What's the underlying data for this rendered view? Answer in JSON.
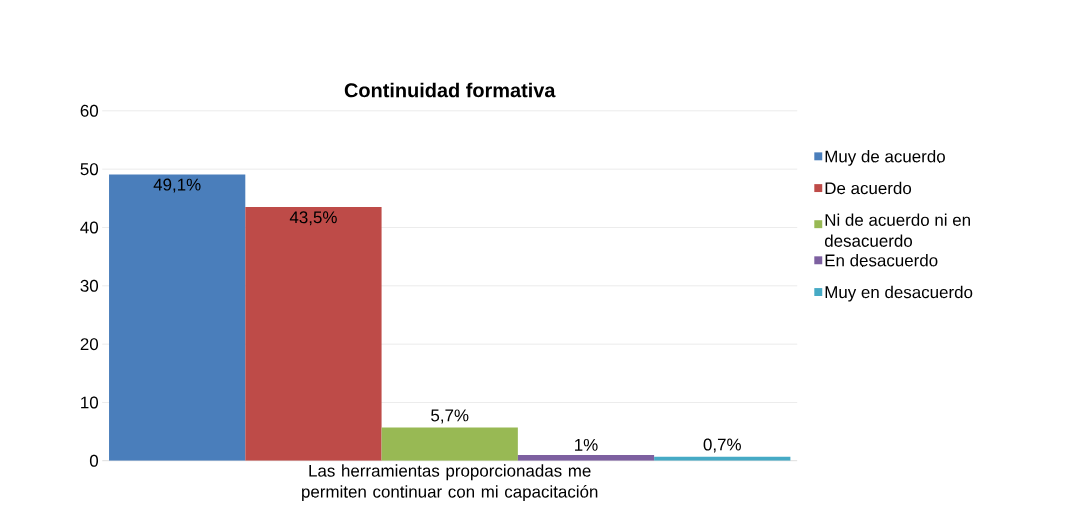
{
  "chart_data": {
    "type": "bar",
    "title": "Continuidad formativa",
    "categories": [
      "Las herramientas proporcionadas me permiten continuar con mi capacitación"
    ],
    "series": [
      {
        "name": "Muy de acuerdo",
        "color": "#4a7ebb",
        "values": [
          49.1
        ],
        "value_labels": [
          "49,1%"
        ]
      },
      {
        "name": "De acuerdo",
        "color": "#be4b48",
        "values": [
          43.5
        ],
        "value_labels": [
          "43,5%"
        ]
      },
      {
        "name": "Ni de acuerdo ni en desacuerdo",
        "color": "#98b954",
        "values": [
          5.7
        ],
        "value_labels": [
          "5,7%"
        ]
      },
      {
        "name": "En desacuerdo",
        "color": "#7d60a0",
        "values": [
          1
        ],
        "value_labels": [
          "1%"
        ]
      },
      {
        "name": "Muy en desacuerdo",
        "color": "#46aac5",
        "values": [
          0.7
        ],
        "value_labels": [
          "0,7%"
        ]
      }
    ],
    "ylim": [
      0,
      60
    ],
    "yticks": [
      0,
      10,
      20,
      30,
      40,
      50,
      60
    ],
    "grid": "y",
    "legend": "right"
  }
}
